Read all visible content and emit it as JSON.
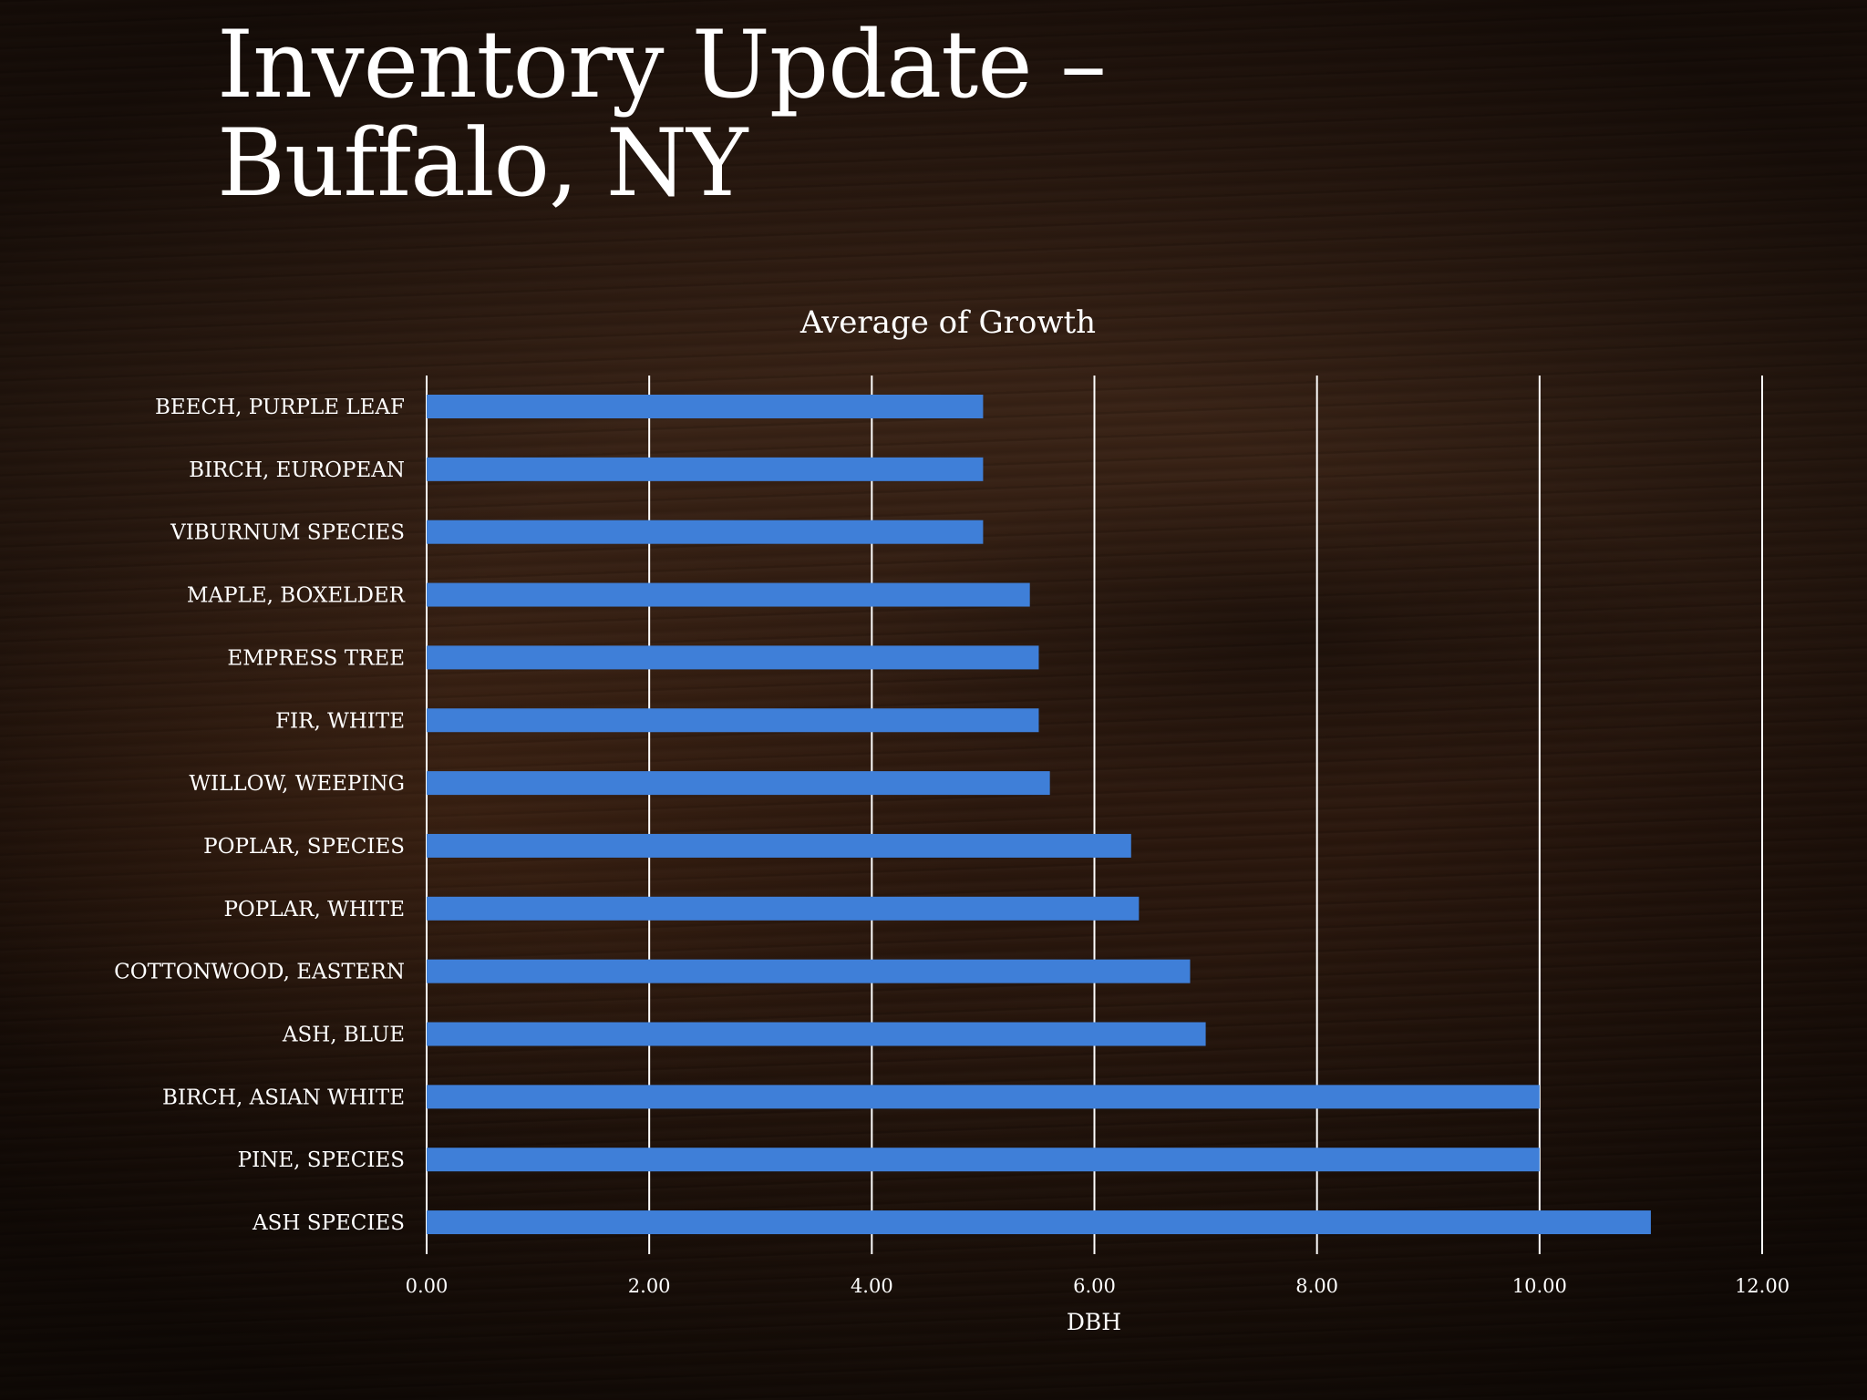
{
  "slide": {
    "title_line1": "Inventory Update –",
    "title_line2": "Buffalo, NY"
  },
  "chart_data": {
    "type": "bar",
    "orientation": "horizontal",
    "title": "Average of Growth",
    "xlabel": "DBH",
    "ylabel": "",
    "xlim": [
      0,
      12
    ],
    "xticks": [
      "0.00",
      "2.00",
      "4.00",
      "6.00",
      "8.00",
      "10.00",
      "12.00"
    ],
    "grid": true,
    "bar_color": "#3f7fd8",
    "categories": [
      "BEECH, PURPLE LEAF",
      "BIRCH, EUROPEAN",
      "VIBURNUM SPECIES",
      "MAPLE, BOXELDER",
      "EMPRESS TREE",
      "FIR, WHITE",
      "WILLOW, WEEPING",
      "POPLAR, SPECIES",
      "POPLAR, WHITE",
      "COTTONWOOD, EASTERN",
      "ASH, BLUE",
      "BIRCH, ASIAN WHITE",
      "PINE, SPECIES",
      "ASH SPECIES"
    ],
    "values": [
      5.0,
      5.0,
      5.0,
      5.42,
      5.5,
      5.5,
      5.6,
      6.33,
      6.4,
      6.86,
      7.0,
      10.0,
      10.0,
      11.0
    ]
  }
}
